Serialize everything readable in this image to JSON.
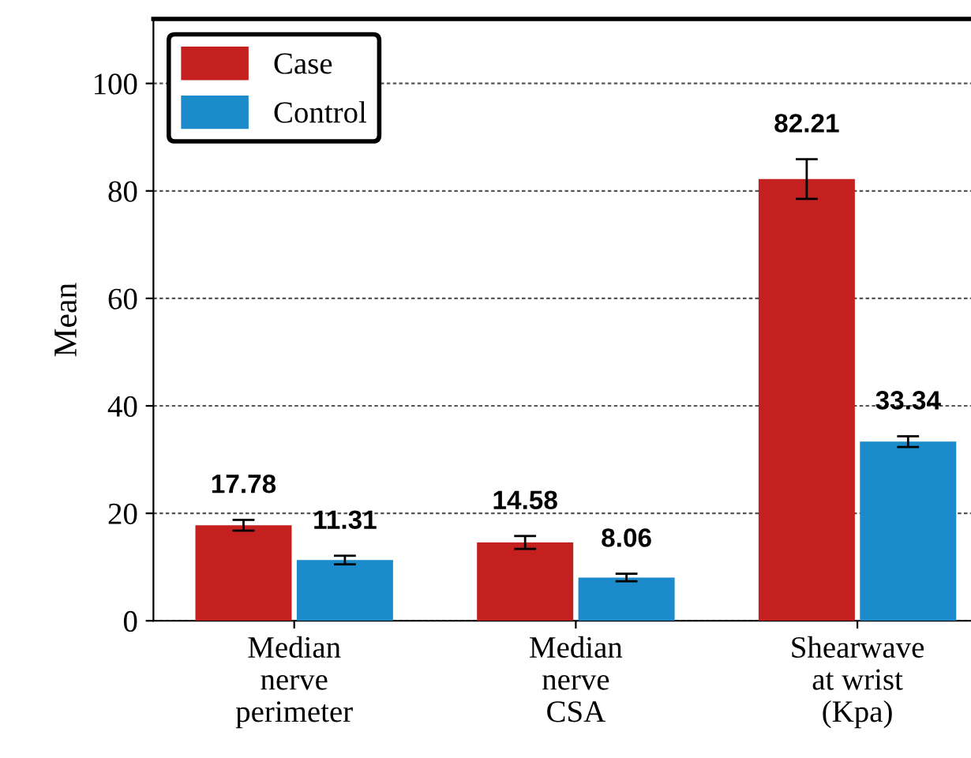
{
  "chart_data": {
    "type": "bar",
    "ylabel": "Mean",
    "categories": [
      "Median\nnerve\nperimeter",
      "Median\nnerve\nCSA",
      "Shearwave\nat wrist\n(Kpa)"
    ],
    "series": [
      {
        "name": "Case",
        "color": "#c3201f",
        "values": [
          17.78,
          14.58,
          82.21
        ],
        "errors": [
          1,
          1.2,
          3.7
        ]
      },
      {
        "name": "Control",
        "color": "#1b8bcb",
        "values": [
          11.31,
          8.06,
          33.34
        ],
        "errors": [
          0.8,
          0.7,
          1
        ]
      }
    ],
    "ylim": [
      0,
      112
    ],
    "yticks": [
      0,
      20,
      40,
      60,
      80,
      100
    ],
    "grid": "y",
    "legend": "top left",
    "data_labels": true
  }
}
